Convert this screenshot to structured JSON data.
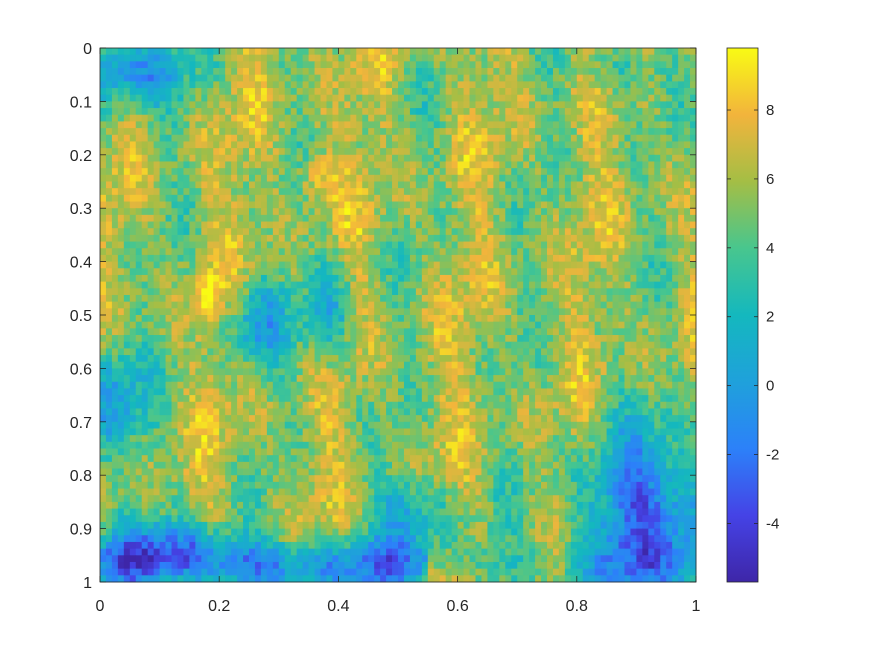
{
  "chart_data": {
    "type": "heatmap",
    "title": "",
    "xlabel": "",
    "ylabel": "",
    "xlim": [
      0,
      1
    ],
    "ylim": [
      0,
      1
    ],
    "y_direction": "reversed",
    "x_ticks": [
      "0",
      "0.2",
      "0.4",
      "0.6",
      "0.8",
      "1"
    ],
    "x_tick_values": [
      0,
      0.2,
      0.4,
      0.6,
      0.8,
      1
    ],
    "y_ticks": [
      "0",
      "0.1",
      "0.2",
      "0.3",
      "0.4",
      "0.5",
      "0.6",
      "0.7",
      "0.8",
      "0.9",
      "1"
    ],
    "y_tick_values": [
      0,
      0.1,
      0.2,
      0.3,
      0.4,
      0.5,
      0.6,
      0.7,
      0.8,
      0.9,
      1
    ],
    "colormap": "parula",
    "colorbar": {
      "range": [
        -5.7,
        9.8
      ],
      "ticks": [
        "-4",
        "-2",
        "0",
        "2",
        "4",
        "6",
        "8"
      ],
      "tick_values": [
        -4,
        -2,
        0,
        2,
        4,
        6,
        8
      ]
    },
    "grid": false,
    "regions": {
      "top_left_corner": -1.5,
      "upper_band": 6.5,
      "middle_band": 5.5,
      "left_edge_middle": -1.0,
      "bottom_right_corner": -3.0,
      "bright_spot_0.18_0.47": 9.5,
      "bright_spot_0.36_0.22": 9.0
    },
    "colors": {
      "parula_low": "#3e26a8",
      "parula_mid": "#14b8be",
      "parula_high": "#f9fb14"
    }
  }
}
